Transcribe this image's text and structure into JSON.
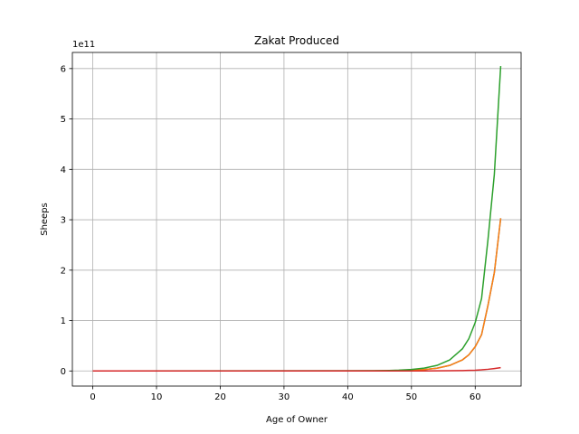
{
  "chart_data": {
    "type": "line",
    "title": "Zakat Produced",
    "xlabel": "Age of Owner",
    "ylabel": "Sheeps",
    "y_offset_label": "1e11",
    "xlim": [
      -3.2,
      67.2
    ],
    "ylim": [
      -0.3,
      6.32
    ],
    "y_scale_factor": 100000000000,
    "x_ticks": [
      0,
      10,
      20,
      30,
      40,
      50,
      60
    ],
    "x_tick_labels": [
      "0",
      "10",
      "20",
      "30",
      "40",
      "50",
      "60"
    ],
    "y_ticks": [
      0,
      1,
      2,
      3,
      4,
      5,
      6
    ],
    "y_tick_labels": [
      "0",
      "1",
      "2",
      "3",
      "4",
      "5",
      "6"
    ],
    "grid": true,
    "legend": "none",
    "x": [
      0,
      44,
      46,
      48,
      50,
      52,
      54,
      56,
      58,
      59,
      60,
      61,
      62,
      63,
      64
    ],
    "series": [
      {
        "color": "#1f77b4",
        "values": [
          0,
          0.002,
          0.004,
          0.008,
          0.015,
          0.028,
          0.055,
          0.11,
          0.22,
          0.32,
          0.48,
          0.72,
          1.3,
          1.95,
          3.03
        ]
      },
      {
        "color": "#ff7f0e",
        "values": [
          0,
          0.002,
          0.004,
          0.008,
          0.015,
          0.028,
          0.055,
          0.11,
          0.22,
          0.32,
          0.48,
          0.72,
          1.3,
          1.95,
          3.03
        ]
      },
      {
        "color": "#2ca02c",
        "values": [
          0,
          0.004,
          0.008,
          0.016,
          0.03,
          0.056,
          0.11,
          0.22,
          0.44,
          0.64,
          0.96,
          1.44,
          2.6,
          3.9,
          6.05
        ]
      },
      {
        "color": "#d62728",
        "values": [
          0,
          0,
          0,
          0,
          0,
          0.001,
          0.002,
          0.004,
          0.008,
          0.011,
          0.015,
          0.022,
          0.033,
          0.048,
          0.065
        ]
      }
    ]
  }
}
